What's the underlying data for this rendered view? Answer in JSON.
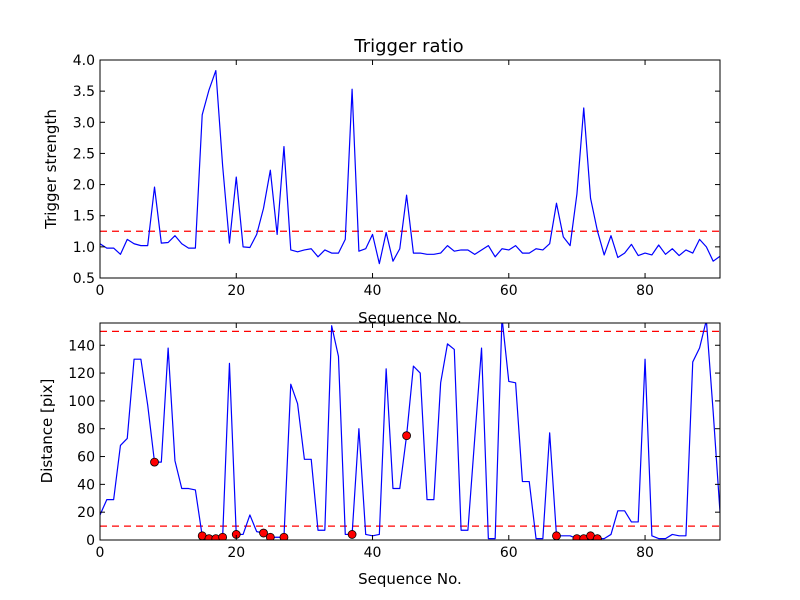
{
  "chart_data": [
    {
      "type": "line",
      "title": "Trigger ratio",
      "xlabel": "Sequence No.",
      "ylabel": "Trigger strength",
      "xlim": [
        0,
        91
      ],
      "ylim": [
        0.5,
        4.0
      ],
      "xticks": [
        0,
        20,
        40,
        60,
        80
      ],
      "yticks": [
        0.5,
        1.0,
        1.5,
        2.0,
        2.5,
        3.0,
        3.5,
        4.0
      ],
      "ytick_labels": [
        "0.5",
        "1.0",
        "1.5",
        "2.0",
        "2.5",
        "3.0",
        "3.5",
        "4.0"
      ],
      "grid": false,
      "line_color": "#0000ff",
      "threshold_color": "#ff0000",
      "thresholds": [
        1.25
      ],
      "x": [
        0,
        1,
        2,
        3,
        4,
        5,
        6,
        7,
        8,
        9,
        10,
        11,
        12,
        13,
        14,
        15,
        16,
        17,
        18,
        19,
        20,
        21,
        22,
        23,
        24,
        25,
        26,
        27,
        28,
        29,
        30,
        31,
        32,
        33,
        34,
        35,
        36,
        37,
        38,
        39,
        40,
        41,
        42,
        43,
        44,
        45,
        46,
        47,
        48,
        49,
        50,
        51,
        52,
        53,
        54,
        55,
        56,
        57,
        58,
        59,
        60,
        61,
        62,
        63,
        64,
        65,
        66,
        67,
        68,
        69,
        70,
        71,
        72,
        73,
        74,
        75,
        76,
        77,
        78,
        79,
        80,
        81,
        82,
        83,
        84,
        85,
        86,
        87,
        88,
        89,
        90,
        91
      ],
      "values": [
        1.05,
        0.98,
        0.98,
        0.88,
        1.12,
        1.05,
        1.02,
        1.02,
        1.96,
        1.06,
        1.07,
        1.18,
        1.05,
        0.98,
        0.98,
        3.12,
        3.52,
        3.83,
        2.3,
        1.06,
        2.12,
        1.0,
        0.99,
        1.2,
        1.62,
        2.23,
        1.2,
        2.61,
        0.95,
        0.92,
        0.95,
        0.97,
        0.84,
        0.95,
        0.9,
        0.9,
        1.12,
        3.53,
        0.93,
        0.97,
        1.2,
        0.73,
        1.23,
        0.77,
        0.97,
        1.83,
        0.9,
        0.9,
        0.88,
        0.88,
        0.9,
        1.02,
        0.93,
        0.95,
        0.95,
        0.88,
        0.95,
        1.02,
        0.84,
        0.97,
        0.95,
        1.02,
        0.9,
        0.9,
        0.97,
        0.95,
        1.05,
        1.7,
        1.16,
        1.02,
        1.85,
        3.23,
        1.78,
        1.26,
        0.87,
        1.18,
        0.83,
        0.9,
        1.04,
        0.86,
        0.9,
        0.87,
        1.03,
        0.88,
        0.97,
        0.86,
        0.95,
        0.9,
        1.12,
        1.0,
        0.77,
        0.85
      ]
    },
    {
      "type": "line",
      "title": "",
      "xlabel": "Sequence No.",
      "ylabel": "Distance [pix]",
      "xlim": [
        0,
        91
      ],
      "ylim": [
        0,
        156
      ],
      "xticks": [
        0,
        20,
        40,
        60,
        80
      ],
      "yticks": [
        0,
        20,
        40,
        60,
        80,
        100,
        120,
        140
      ],
      "grid": false,
      "line_color": "#0000ff",
      "threshold_color": "#ff0000",
      "marker_color": "#ff0000",
      "thresholds": [
        10,
        150
      ],
      "x": [
        0,
        1,
        2,
        3,
        4,
        5,
        6,
        7,
        8,
        9,
        10,
        11,
        12,
        13,
        14,
        15,
        16,
        17,
        18,
        19,
        20,
        21,
        22,
        23,
        24,
        25,
        26,
        27,
        28,
        29,
        30,
        31,
        32,
        33,
        34,
        35,
        36,
        37,
        38,
        39,
        40,
        41,
        42,
        43,
        44,
        45,
        46,
        47,
        48,
        49,
        50,
        51,
        52,
        53,
        54,
        55,
        56,
        57,
        58,
        59,
        60,
        61,
        62,
        63,
        64,
        65,
        66,
        67,
        68,
        69,
        70,
        71,
        72,
        73,
        74,
        75,
        76,
        77,
        78,
        79,
        80,
        81,
        82,
        83,
        84,
        85,
        86,
        87,
        88,
        89,
        90,
        91
      ],
      "values": [
        18,
        29,
        29,
        68,
        73,
        130,
        130,
        97,
        56,
        56,
        138,
        57,
        37,
        37,
        36,
        3,
        1,
        1,
        2,
        127,
        4,
        4,
        18,
        6,
        5,
        2,
        2,
        2,
        112,
        98,
        58,
        58,
        7,
        7,
        154,
        132,
        4,
        4,
        80,
        4,
        3,
        4,
        123,
        37,
        37,
        75,
        125,
        120,
        29,
        29,
        113,
        141,
        137,
        7,
        7,
        73,
        138,
        1,
        1,
        160,
        114,
        113,
        42,
        42,
        1,
        1,
        77,
        3,
        3,
        3,
        1,
        1,
        3,
        1,
        1,
        4,
        21,
        21,
        13,
        13,
        130,
        3,
        1,
        1,
        4,
        3,
        3,
        128,
        138,
        158,
        92,
        20
      ],
      "markers": [
        {
          "x": 8,
          "y": 56
        },
        {
          "x": 15,
          "y": 3
        },
        {
          "x": 16,
          "y": 1
        },
        {
          "x": 17,
          "y": 1
        },
        {
          "x": 18,
          "y": 2
        },
        {
          "x": 20,
          "y": 4
        },
        {
          "x": 24,
          "y": 5
        },
        {
          "x": 25,
          "y": 2
        },
        {
          "x": 27,
          "y": 2
        },
        {
          "x": 37,
          "y": 4
        },
        {
          "x": 45,
          "y": 75
        },
        {
          "x": 67,
          "y": 3
        },
        {
          "x": 70,
          "y": 1
        },
        {
          "x": 71,
          "y": 1
        },
        {
          "x": 72,
          "y": 3
        },
        {
          "x": 73,
          "y": 1
        }
      ]
    }
  ]
}
